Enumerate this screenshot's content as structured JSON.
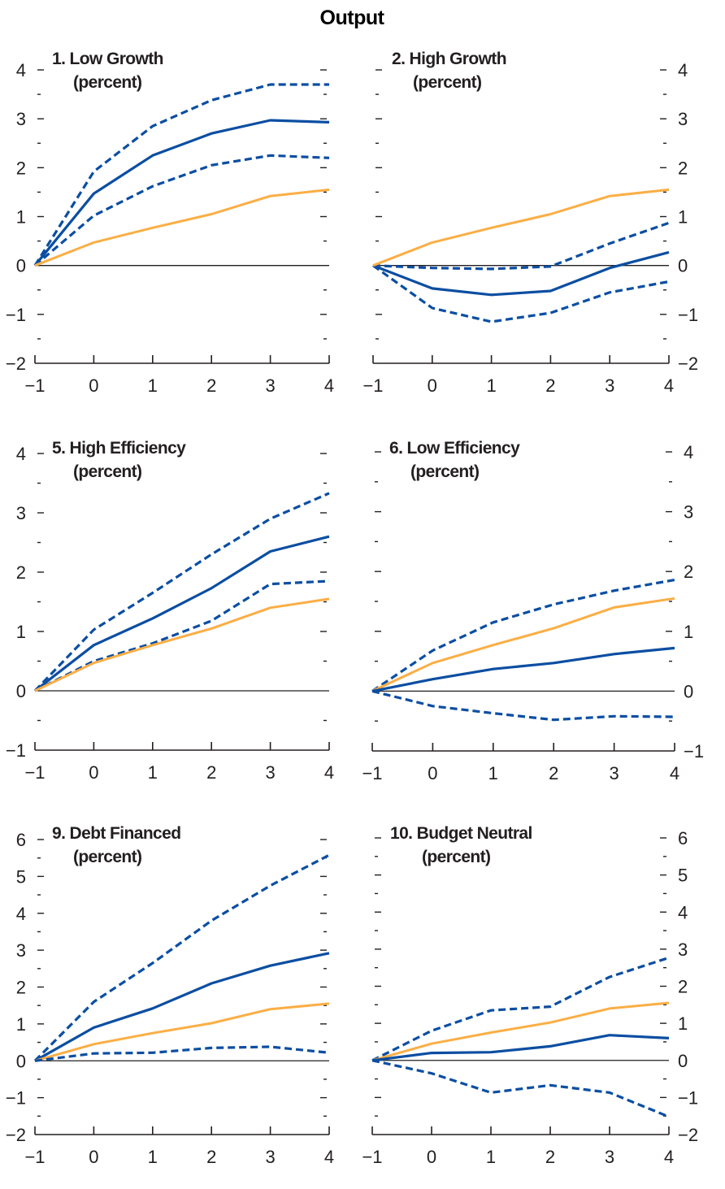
{
  "title": "Output",
  "colors": {
    "estimate": "#0b4ea2",
    "confidence_band": "#0b4ea2",
    "baseline": "#fbae45",
    "axis": "#231f20"
  },
  "chart_data": [
    {
      "type": "line",
      "title": "1. Low Growth",
      "subtitle": "(percent)",
      "x": [
        -1,
        0,
        1,
        2,
        3,
        4
      ],
      "xticks": [
        "−1",
        "0",
        "1",
        "2",
        "3",
        "4"
      ],
      "ylim": [
        -2,
        4
      ],
      "yticks": [
        4,
        3,
        2,
        1,
        0,
        -1,
        -2
      ],
      "ytick_labels": [
        "4",
        "3",
        "2",
        "1",
        "0",
        "−1",
        "−2"
      ],
      "ylabel_side": "left",
      "grid": false,
      "series": [
        {
          "name": "upper bound",
          "style": "dashed",
          "color": "estimate",
          "values": [
            0,
            1.92,
            2.85,
            3.38,
            3.7,
            3.7
          ]
        },
        {
          "name": "estimate",
          "style": "solid",
          "color": "estimate",
          "values": [
            0,
            1.47,
            2.25,
            2.7,
            2.97,
            2.93
          ]
        },
        {
          "name": "lower bound",
          "style": "dashed",
          "color": "estimate",
          "values": [
            0,
            1.02,
            1.62,
            2.05,
            2.25,
            2.2
          ]
        },
        {
          "name": "baseline",
          "style": "solid",
          "color": "baseline",
          "values": [
            0,
            0.47,
            0.77,
            1.05,
            1.42,
            1.55
          ]
        }
      ]
    },
    {
      "type": "line",
      "title": "2. High Growth",
      "subtitle": "(percent)",
      "x": [
        -1,
        0,
        1,
        2,
        3,
        4
      ],
      "xticks": [
        "−1",
        "0",
        "1",
        "2",
        "3",
        "4"
      ],
      "ylim": [
        -2,
        4
      ],
      "yticks": [
        4,
        3,
        2,
        1,
        0,
        -1,
        -2
      ],
      "ytick_labels": [
        "4",
        "3",
        "2",
        "1",
        "0",
        "−1",
        "−2"
      ],
      "ylabel_side": "right",
      "grid": false,
      "series": [
        {
          "name": "upper bound",
          "style": "dashed",
          "color": "estimate",
          "values": [
            0,
            -0.05,
            -0.07,
            -0.02,
            0.45,
            0.87
          ]
        },
        {
          "name": "estimate",
          "style": "solid",
          "color": "estimate",
          "values": [
            0,
            -0.47,
            -0.6,
            -0.52,
            -0.05,
            0.27
          ]
        },
        {
          "name": "lower bound",
          "style": "dashed",
          "color": "estimate",
          "values": [
            0,
            -0.87,
            -1.15,
            -0.97,
            -0.55,
            -0.33
          ]
        },
        {
          "name": "baseline",
          "style": "solid",
          "color": "baseline",
          "values": [
            0,
            0.47,
            0.77,
            1.05,
            1.42,
            1.55
          ]
        }
      ]
    },
    {
      "type": "line",
      "title": "5. High Efficiency",
      "subtitle": "(percent)",
      "x": [
        -1,
        0,
        1,
        2,
        3,
        4
      ],
      "xticks": [
        "−1",
        "0",
        "1",
        "2",
        "3",
        "4"
      ],
      "ylim": [
        -1,
        4
      ],
      "yticks": [
        4,
        3,
        2,
        1,
        0,
        -1
      ],
      "ytick_labels": [
        "4",
        "3",
        "2",
        "1",
        "0",
        "−1"
      ],
      "ylabel_side": "left",
      "grid": false,
      "series": [
        {
          "name": "upper bound",
          "style": "dashed",
          "color": "estimate",
          "values": [
            0,
            1.03,
            1.65,
            2.3,
            2.9,
            3.33
          ]
        },
        {
          "name": "estimate",
          "style": "solid",
          "color": "estimate",
          "values": [
            0,
            0.77,
            1.22,
            1.73,
            2.35,
            2.6
          ]
        },
        {
          "name": "lower bound",
          "style": "dashed",
          "color": "estimate",
          "values": [
            0,
            0.5,
            0.8,
            1.18,
            1.8,
            1.85
          ]
        },
        {
          "name": "baseline",
          "style": "solid",
          "color": "baseline",
          "values": [
            0,
            0.47,
            0.77,
            1.05,
            1.4,
            1.55
          ]
        }
      ]
    },
    {
      "type": "line",
      "title": "6. Low Efficiency",
      "subtitle": "(percent)",
      "x": [
        -1,
        0,
        1,
        2,
        3,
        4
      ],
      "xticks": [
        "−1",
        "0",
        "1",
        "2",
        "3",
        "4"
      ],
      "ylim": [
        -1,
        4
      ],
      "yticks": [
        4,
        3,
        2,
        1,
        0,
        -1
      ],
      "ytick_labels": [
        "4",
        "3",
        "2",
        "1",
        "0",
        "−1"
      ],
      "ylabel_side": "right",
      "grid": false,
      "series": [
        {
          "name": "upper bound",
          "style": "dashed",
          "color": "estimate",
          "values": [
            0,
            0.68,
            1.15,
            1.45,
            1.68,
            1.86
          ]
        },
        {
          "name": "baseline",
          "style": "solid",
          "color": "baseline",
          "values": [
            0,
            0.47,
            0.77,
            1.05,
            1.4,
            1.55
          ]
        },
        {
          "name": "estimate",
          "style": "solid",
          "color": "estimate",
          "values": [
            0,
            0.2,
            0.37,
            0.47,
            0.62,
            0.72
          ]
        },
        {
          "name": "lower bound",
          "style": "dashed",
          "color": "estimate",
          "values": [
            0,
            -0.25,
            -0.37,
            -0.48,
            -0.42,
            -0.43
          ]
        }
      ]
    },
    {
      "type": "line",
      "title": "9. Debt Financed",
      "subtitle": "(percent)",
      "x": [
        -1,
        0,
        1,
        2,
        3,
        4
      ],
      "xticks": [
        "−1",
        "0",
        "1",
        "2",
        "3",
        "4"
      ],
      "ylim": [
        -2,
        6
      ],
      "yticks": [
        6,
        5,
        4,
        3,
        2,
        1,
        0,
        -1,
        -2
      ],
      "ytick_labels": [
        "6",
        "5",
        "4",
        "3",
        "2",
        "1",
        "0",
        "−1",
        "−2"
      ],
      "ylabel_side": "left",
      "grid": false,
      "series": [
        {
          "name": "upper bound",
          "style": "dashed",
          "color": "estimate",
          "values": [
            0,
            1.6,
            2.65,
            3.8,
            4.75,
            5.58
          ]
        },
        {
          "name": "estimate",
          "style": "solid",
          "color": "estimate",
          "values": [
            0,
            0.9,
            1.42,
            2.1,
            2.58,
            2.92
          ]
        },
        {
          "name": "baseline",
          "style": "solid",
          "color": "baseline",
          "values": [
            0,
            0.45,
            0.75,
            1.02,
            1.4,
            1.55
          ]
        },
        {
          "name": "lower bound",
          "style": "dashed",
          "color": "estimate",
          "values": [
            0,
            0.2,
            0.22,
            0.35,
            0.38,
            0.22
          ]
        }
      ]
    },
    {
      "type": "line",
      "title": "10. Budget Neutral",
      "subtitle": "(percent)",
      "x": [
        -1,
        0,
        1,
        2,
        3,
        4
      ],
      "xticks": [
        "−1",
        "0",
        "1",
        "2",
        "3",
        "4"
      ],
      "ylim": [
        -2,
        6
      ],
      "yticks": [
        6,
        5,
        4,
        3,
        2,
        1,
        0,
        -1,
        -2
      ],
      "ytick_labels": [
        "6",
        "5",
        "4",
        "3",
        "2",
        "1",
        "0",
        "−1",
        "−2"
      ],
      "ylabel_side": "right",
      "grid": false,
      "series": [
        {
          "name": "upper bound",
          "style": "dashed",
          "color": "estimate",
          "values": [
            0,
            0.8,
            1.35,
            1.45,
            2.25,
            2.77
          ]
        },
        {
          "name": "baseline",
          "style": "solid",
          "color": "baseline",
          "values": [
            0,
            0.45,
            0.75,
            1.02,
            1.4,
            1.55
          ]
        },
        {
          "name": "estimate",
          "style": "solid",
          "color": "estimate",
          "values": [
            0,
            0.2,
            0.22,
            0.38,
            0.68,
            0.6
          ]
        },
        {
          "name": "lower bound",
          "style": "dashed",
          "color": "estimate",
          "values": [
            0,
            -0.35,
            -0.87,
            -0.67,
            -0.87,
            -1.52
          ]
        }
      ]
    }
  ]
}
